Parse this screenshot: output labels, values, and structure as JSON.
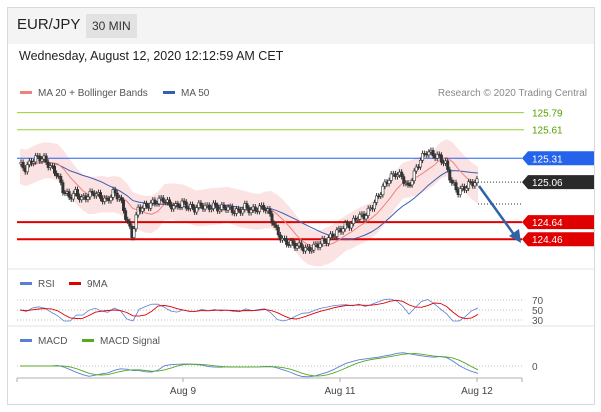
{
  "header": {
    "pair": "EUR/JPY",
    "timeframe": "30 MIN"
  },
  "datetime": "Wednesday, August 12, 2020 12:12:59 AM CET",
  "legend": {
    "ma20": "MA 20 + Bollinger Bands",
    "ma50": "MA 50"
  },
  "credit": "Research © 2020 Trading Central",
  "colors": {
    "ma20": "#f08080",
    "ma50": "#3a5fb0",
    "resistance": "#2563eb",
    "support": "#e00000",
    "target_green": "#9acd32",
    "arrow": "#2e63a8",
    "rsi": "#5b7fd6",
    "rsi_ma": "#e00000",
    "macd": "#5b7fd6",
    "macd_signal": "#55aa22"
  },
  "indicators": {
    "rsi": {
      "label": "RSI",
      "ma_label": "9MA",
      "levels": [
        "70",
        "50",
        "30"
      ]
    },
    "macd": {
      "label": "MACD",
      "signal_label": "MACD Signal",
      "zero_label": "0"
    }
  },
  "chart_data": {
    "type": "candlestick",
    "ylim": [
      124.2,
      125.88
    ],
    "x_tick_labels": [
      "Aug 9",
      "Aug 11",
      "Aug 12"
    ],
    "levels": [
      {
        "value": 125.79,
        "label": "125.79",
        "kind": "target"
      },
      {
        "value": 125.61,
        "label": "125.61",
        "kind": "target"
      },
      {
        "value": 125.31,
        "label": "125.31",
        "kind": "resistance"
      },
      {
        "value": 125.06,
        "label": "125.06",
        "kind": "current"
      },
      {
        "value": 124.64,
        "label": "124.64",
        "kind": "support"
      },
      {
        "value": 124.46,
        "label": "124.46",
        "kind": "support"
      }
    ],
    "close_path": [
      125.25,
      125.2,
      125.28,
      125.32,
      125.3,
      125.22,
      125.15,
      124.98,
      124.9,
      124.95,
      124.88,
      124.92,
      124.95,
      124.9,
      124.86,
      124.95,
      124.9,
      124.7,
      124.5,
      124.78,
      124.8,
      124.83,
      124.86,
      124.88,
      124.82,
      124.8,
      124.84,
      124.8,
      124.78,
      124.82,
      124.79,
      124.81,
      124.78,
      124.8,
      124.76,
      124.75,
      124.8,
      124.76,
      124.78,
      124.8,
      124.72,
      124.55,
      124.45,
      124.42,
      124.4,
      124.38,
      124.35,
      124.38,
      124.42,
      124.45,
      124.5,
      124.55,
      124.6,
      124.62,
      124.7,
      124.7,
      124.78,
      124.88,
      125.0,
      125.1,
      125.15,
      125.12,
      125.0,
      125.15,
      125.3,
      125.38,
      125.35,
      125.32,
      125.25,
      125.05,
      124.96,
      125.0,
      125.05,
      125.06
    ]
  }
}
